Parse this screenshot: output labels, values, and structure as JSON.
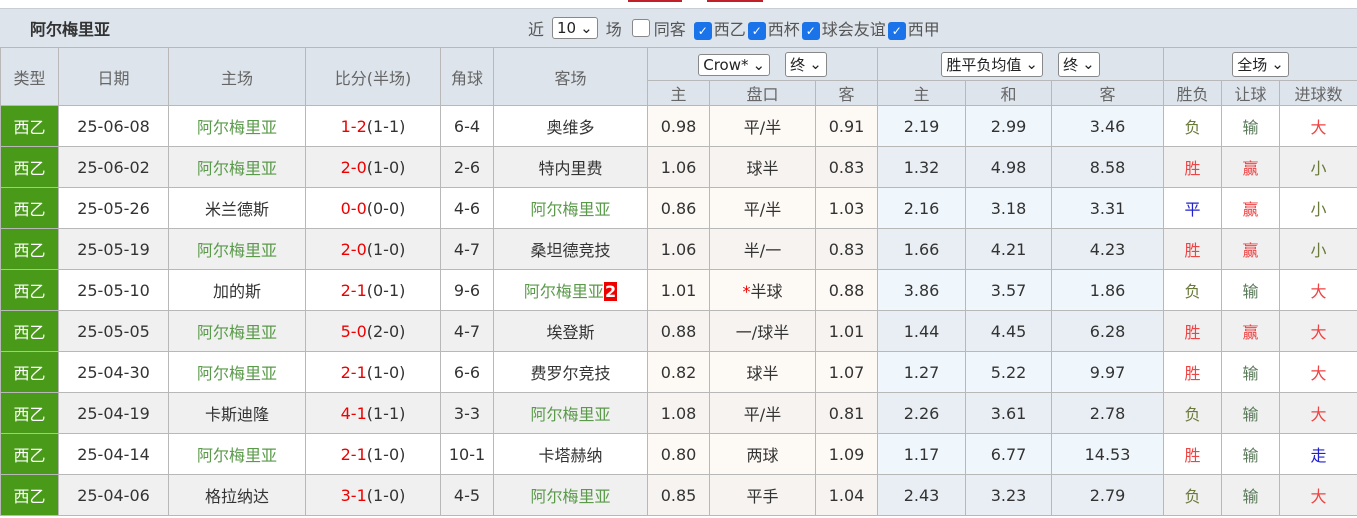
{
  "header": {
    "team": "阿尔梅里亚",
    "recent_prefix": "近",
    "recent_count": "10",
    "recent_suffix": "场",
    "same_venue_label": "同客",
    "same_venue_checked": false,
    "competitions": [
      {
        "label": "西乙",
        "checked": true
      },
      {
        "label": "西杯",
        "checked": true
      },
      {
        "label": "球会友谊",
        "checked": true
      },
      {
        "label": "西甲",
        "checked": true
      }
    ]
  },
  "columns": {
    "type": "类型",
    "date": "日期",
    "home": "主场",
    "score": "比分(半场)",
    "corners": "角球",
    "away": "客场",
    "handicap_company": "Crow*",
    "handicap_stage": "终",
    "euro_type": "胜平负均值",
    "euro_stage": "终",
    "result_scope": "全场",
    "sub": [
      "主",
      "盘口",
      "客",
      "主",
      "和",
      "客",
      "胜负",
      "让球",
      "进球数"
    ]
  },
  "colors": {
    "type_bg": "#4a9a1a",
    "win": "#e44",
    "lose": "#6a7a3a",
    "draw": "#22c",
    "team_highlight": "#5a9a4a"
  },
  "rows": [
    {
      "type": "西乙",
      "date": "25-06-08",
      "home": "阿尔梅里亚",
      "home_hl": true,
      "ft": "1-2",
      "ht": "(1-1)",
      "corners": "6-4",
      "away": "奥维多",
      "away_hl": false,
      "badge": "",
      "h_home": "0.98",
      "line": "平/半",
      "star": "",
      "h_away": "0.91",
      "e_home": "2.19",
      "e_draw": "2.99",
      "e_away": "3.46",
      "wdl": "负",
      "ah": "输",
      "ou": "大"
    },
    {
      "type": "西乙",
      "date": "25-06-02",
      "home": "阿尔梅里亚",
      "home_hl": true,
      "ft": "2-0",
      "ht": "(1-0)",
      "corners": "2-6",
      "away": "特内里费",
      "away_hl": false,
      "badge": "",
      "h_home": "1.06",
      "line": "球半",
      "star": "",
      "h_away": "0.83",
      "e_home": "1.32",
      "e_draw": "4.98",
      "e_away": "8.58",
      "wdl": "胜",
      "ah": "赢",
      "ou": "小"
    },
    {
      "type": "西乙",
      "date": "25-05-26",
      "home": "米兰德斯",
      "home_hl": false,
      "ft": "0-0",
      "ht": "(0-0)",
      "corners": "4-6",
      "away": "阿尔梅里亚",
      "away_hl": true,
      "badge": "",
      "h_home": "0.86",
      "line": "平/半",
      "star": "",
      "h_away": "1.03",
      "e_home": "2.16",
      "e_draw": "3.18",
      "e_away": "3.31",
      "wdl": "平",
      "ah": "赢",
      "ou": "小"
    },
    {
      "type": "西乙",
      "date": "25-05-19",
      "home": "阿尔梅里亚",
      "home_hl": true,
      "ft": "2-0",
      "ht": "(1-0)",
      "corners": "4-7",
      "away": "桑坦德竞技",
      "away_hl": false,
      "badge": "",
      "h_home": "1.06",
      "line": "半/一",
      "star": "",
      "h_away": "0.83",
      "e_home": "1.66",
      "e_draw": "4.21",
      "e_away": "4.23",
      "wdl": "胜",
      "ah": "赢",
      "ou": "小"
    },
    {
      "type": "西乙",
      "date": "25-05-10",
      "home": "加的斯",
      "home_hl": false,
      "ft": "2-1",
      "ht": "(0-1)",
      "corners": "9-6",
      "away": "阿尔梅里亚",
      "away_hl": true,
      "badge": "2",
      "h_home": "1.01",
      "line": "半球",
      "star": "*",
      "h_away": "0.88",
      "e_home": "3.86",
      "e_draw": "3.57",
      "e_away": "1.86",
      "wdl": "负",
      "ah": "输",
      "ou": "大"
    },
    {
      "type": "西乙",
      "date": "25-05-05",
      "home": "阿尔梅里亚",
      "home_hl": true,
      "ft": "5-0",
      "ht": "(2-0)",
      "corners": "4-7",
      "away": "埃登斯",
      "away_hl": false,
      "badge": "",
      "h_home": "0.88",
      "line": "一/球半",
      "star": "",
      "h_away": "1.01",
      "e_home": "1.44",
      "e_draw": "4.45",
      "e_away": "6.28",
      "wdl": "胜",
      "ah": "赢",
      "ou": "大"
    },
    {
      "type": "西乙",
      "date": "25-04-30",
      "home": "阿尔梅里亚",
      "home_hl": true,
      "ft": "2-1",
      "ht": "(1-0)",
      "corners": "6-6",
      "away": "费罗尔竞技",
      "away_hl": false,
      "badge": "",
      "h_home": "0.82",
      "line": "球半",
      "star": "",
      "h_away": "1.07",
      "e_home": "1.27",
      "e_draw": "5.22",
      "e_away": "9.97",
      "wdl": "胜",
      "ah": "输",
      "ou": "大"
    },
    {
      "type": "西乙",
      "date": "25-04-19",
      "home": "卡斯迪隆",
      "home_hl": false,
      "ft": "4-1",
      "ht": "(1-1)",
      "corners": "3-3",
      "away": "阿尔梅里亚",
      "away_hl": true,
      "badge": "",
      "h_home": "1.08",
      "line": "平/半",
      "star": "",
      "h_away": "0.81",
      "e_home": "2.26",
      "e_draw": "3.61",
      "e_away": "2.78",
      "wdl": "负",
      "ah": "输",
      "ou": "大"
    },
    {
      "type": "西乙",
      "date": "25-04-14",
      "home": "阿尔梅里亚",
      "home_hl": true,
      "ft": "2-1",
      "ht": "(1-0)",
      "corners": "10-1",
      "away": "卡塔赫纳",
      "away_hl": false,
      "badge": "",
      "h_home": "0.80",
      "line": "两球",
      "star": "",
      "h_away": "1.09",
      "e_home": "1.17",
      "e_draw": "6.77",
      "e_away": "14.53",
      "wdl": "胜",
      "ah": "输",
      "ou": "走"
    },
    {
      "type": "西乙",
      "date": "25-04-06",
      "home": "格拉纳达",
      "home_hl": false,
      "ft": "3-1",
      "ht": "(1-0)",
      "corners": "4-5",
      "away": "阿尔梅里亚",
      "away_hl": true,
      "badge": "",
      "h_home": "0.85",
      "line": "平手",
      "star": "",
      "h_away": "1.04",
      "e_home": "2.43",
      "e_draw": "3.23",
      "e_away": "2.79",
      "wdl": "负",
      "ah": "输",
      "ou": "大"
    }
  ]
}
